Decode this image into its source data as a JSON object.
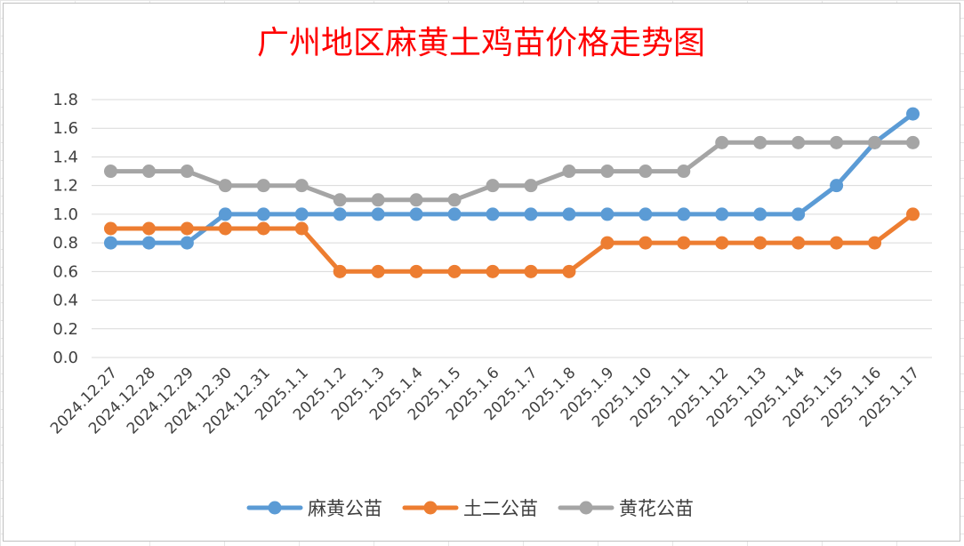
{
  "chart_data": {
    "type": "line",
    "title": "广州地区麻黄土鸡苗价格走势图",
    "xlabel": "",
    "ylabel": "",
    "categories": [
      "2024.12.27",
      "2024.12.28",
      "2024.12.29",
      "2024.12.30",
      "2024.12.31",
      "2025.1.1",
      "2025.1.2",
      "2025.1.3",
      "2025.1.4",
      "2025.1.5",
      "2025.1.6",
      "2025.1.7",
      "2025.1.8",
      "2025.1.9",
      "2025.1.10",
      "2025.1.11",
      "2025.1.12",
      "2025.1.13",
      "2025.1.14",
      "2025.1.15",
      "2025.1.16",
      "2025.1.17"
    ],
    "ylim": [
      0,
      1.8
    ],
    "yticks": [
      "0.0",
      "0.2",
      "0.4",
      "0.6",
      "0.8",
      "1.0",
      "1.2",
      "1.4",
      "1.6",
      "1.8"
    ],
    "grid": true,
    "legend": "bottom",
    "series": [
      {
        "name": "麻黄公苗",
        "color": "#5b9bd5",
        "values": [
          0.8,
          0.8,
          0.8,
          1.0,
          1.0,
          1.0,
          1.0,
          1.0,
          1.0,
          1.0,
          1.0,
          1.0,
          1.0,
          1.0,
          1.0,
          1.0,
          1.0,
          1.0,
          1.0,
          1.2,
          1.5,
          1.7
        ]
      },
      {
        "name": "土二公苗",
        "color": "#ed7d31",
        "values": [
          0.9,
          0.9,
          0.9,
          0.9,
          0.9,
          0.9,
          0.6,
          0.6,
          0.6,
          0.6,
          0.6,
          0.6,
          0.6,
          0.8,
          0.8,
          0.8,
          0.8,
          0.8,
          0.8,
          0.8,
          0.8,
          1.0
        ]
      },
      {
        "name": "黄花公苗",
        "color": "#a5a5a5",
        "values": [
          1.3,
          1.3,
          1.3,
          1.2,
          1.2,
          1.2,
          1.1,
          1.1,
          1.1,
          1.1,
          1.2,
          1.2,
          1.3,
          1.3,
          1.3,
          1.3,
          1.5,
          1.5,
          1.5,
          1.5,
          1.5,
          1.5
        ]
      }
    ]
  }
}
